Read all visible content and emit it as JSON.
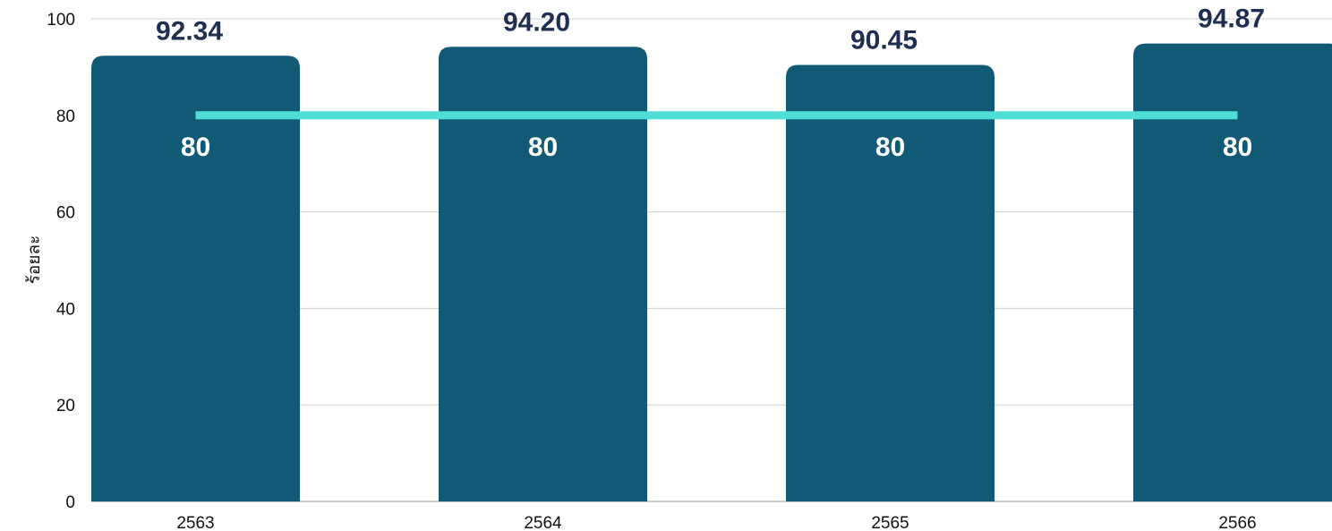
{
  "chart_data": {
    "type": "bar",
    "categories": [
      "2563",
      "2564",
      "2565",
      "2566"
    ],
    "series": [
      {
        "values": [
          92.34,
          94.2,
          90.45,
          94.87
        ],
        "value_labels": [
          "92.34",
          "94.20",
          "90.45",
          "94.87"
        ],
        "color": "#105a75",
        "render": "bar"
      },
      {
        "values": [
          80,
          80,
          80,
          80
        ],
        "value_labels": [
          "80",
          "80",
          "80",
          "80"
        ],
        "color": "#4fded6",
        "render": "line"
      }
    ],
    "ylabel": "ร้อยละ",
    "ylim": [
      0,
      100
    ],
    "yticks": [
      "0",
      "20",
      "40",
      "60",
      "80",
      "100"
    ],
    "grid": true,
    "legend": "none",
    "colors": {
      "bar": "#105a75",
      "target_line": "#4fded6",
      "bar_value_text": "#1f2f52",
      "target_value_text": "#ffffff",
      "grid": "#d0d0d0"
    }
  }
}
